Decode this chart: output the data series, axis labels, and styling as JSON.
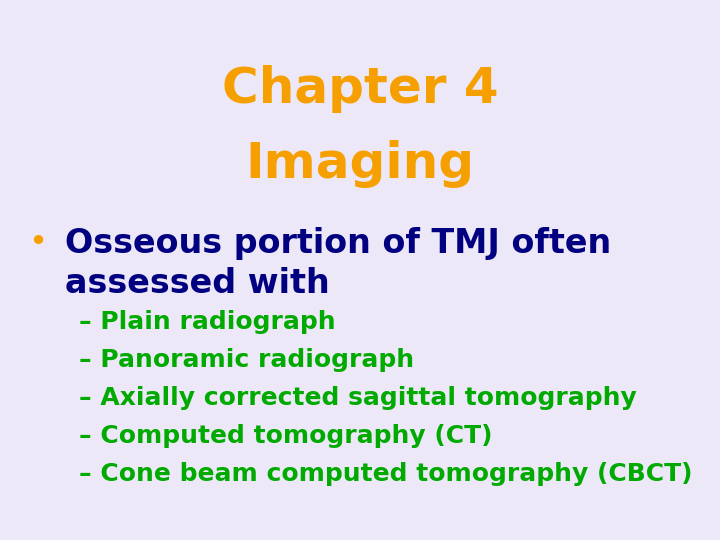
{
  "background_color": "#ede8f8",
  "title_line1": "Chapter 4",
  "title_line2": "Imaging",
  "title_color": "#f5a000",
  "title_fontsize": 36,
  "bullet_marker": "•",
  "bullet_marker_color": "#f5a000",
  "bullet_text_line1": "Osseous portion of TMJ often",
  "bullet_text_line2": "assessed with",
  "bullet_text_color": "#000080",
  "bullet_fontsize": 24,
  "sub_items": [
    "– Plain radiograph",
    "– Panoramic radiograph",
    "– Axially corrected sagittal tomography",
    "– Computed tomography (CT)",
    "– Cone beam computed tomography (CBCT)"
  ],
  "sub_color": "#00aa00",
  "sub_fontsize": 18
}
